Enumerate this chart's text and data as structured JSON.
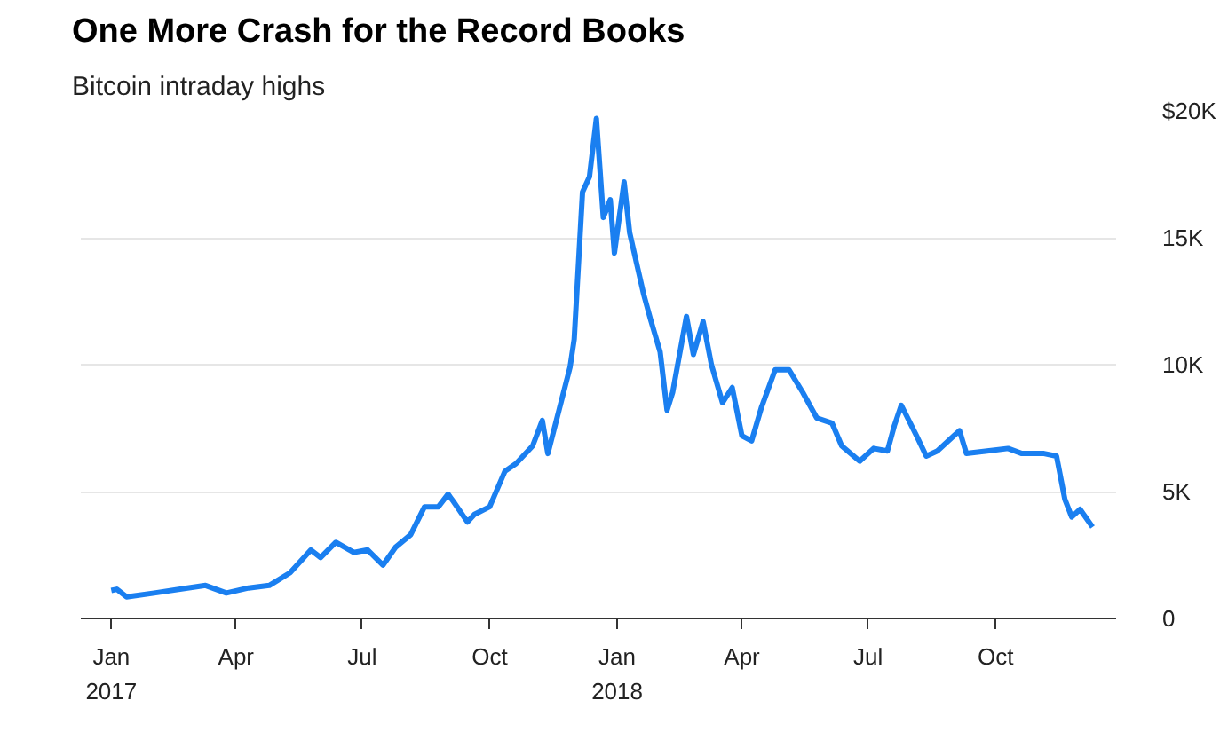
{
  "chart_data": {
    "type": "line",
    "title": "One More Crash for the Record Books",
    "subtitle": "Bitcoin intraday highs",
    "x": [
      "2017-01-01",
      "2017-01-05",
      "2017-01-12",
      "2017-02-01",
      "2017-02-25",
      "2017-03-10",
      "2017-03-25",
      "2017-04-10",
      "2017-04-25",
      "2017-05-10",
      "2017-05-25",
      "2017-06-01",
      "2017-06-12",
      "2017-06-25",
      "2017-07-05",
      "2017-07-16",
      "2017-07-25",
      "2017-08-05",
      "2017-08-15",
      "2017-08-25",
      "2017-09-01",
      "2017-09-05",
      "2017-09-15",
      "2017-09-20",
      "2017-10-01",
      "2017-10-12",
      "2017-10-20",
      "2017-11-01",
      "2017-11-08",
      "2017-11-12",
      "2017-11-20",
      "2017-11-28",
      "2017-12-01",
      "2017-12-07",
      "2017-12-12",
      "2017-12-17",
      "2017-12-22",
      "2017-12-27",
      "2017-12-30",
      "2018-01-06",
      "2018-01-10",
      "2018-01-15",
      "2018-01-20",
      "2018-01-25",
      "2018-02-01",
      "2018-02-06",
      "2018-02-10",
      "2018-02-20",
      "2018-02-25",
      "2018-03-04",
      "2018-03-10",
      "2018-03-18",
      "2018-03-25",
      "2018-04-01",
      "2018-04-08",
      "2018-04-15",
      "2018-04-25",
      "2018-05-05",
      "2018-05-15",
      "2018-05-25",
      "2018-06-05",
      "2018-06-12",
      "2018-06-25",
      "2018-07-05",
      "2018-07-15",
      "2018-07-20",
      "2018-07-25",
      "2018-08-05",
      "2018-08-12",
      "2018-08-20",
      "2018-09-01",
      "2018-09-05",
      "2018-09-10",
      "2018-09-25",
      "2018-10-10",
      "2018-10-20",
      "2018-11-05",
      "2018-11-14",
      "2018-11-20",
      "2018-11-25",
      "2018-12-01",
      "2018-12-10"
    ],
    "series": [
      {
        "color": "#1a7ff0",
        "values": [
          1100,
          1150,
          850,
          1000,
          1200,
          1300,
          1000,
          1200,
          1300,
          1800,
          2700,
          2400,
          3000,
          2600,
          2700,
          2100,
          2800,
          3300,
          4400,
          4400,
          4900,
          4600,
          3800,
          4100,
          4400,
          5800,
          6100,
          6800,
          7800,
          6500,
          8200,
          9900,
          11000,
          16800,
          17400,
          19700,
          15800,
          16500,
          14400,
          17200,
          15200,
          14000,
          12800,
          11800,
          10500,
          8200,
          8900,
          11900,
          10400,
          11700,
          10000,
          8500,
          9100,
          7200,
          7000,
          8300,
          9800,
          9800,
          8900,
          7900,
          7700,
          6800,
          6200,
          6700,
          6600,
          7600,
          8400,
          7200,
          6400,
          6600,
          7200,
          7400,
          6500,
          6600,
          6700,
          6500,
          6500,
          6400,
          4700,
          4000,
          4300,
          3600
        ]
      }
    ],
    "xlim": [
      "2016-12-10",
      "2018-12-27"
    ],
    "ylim": [
      0,
      20000
    ],
    "xticks": [
      {
        "value": "2017-01-01",
        "label": "Jan\n2017"
      },
      {
        "value": "2017-04-01",
        "label": "Apr"
      },
      {
        "value": "2017-07-01",
        "label": "Jul"
      },
      {
        "value": "2017-10-01",
        "label": "Oct"
      },
      {
        "value": "2018-01-01",
        "label": "Jan\n2018"
      },
      {
        "value": "2018-04-01",
        "label": "Apr"
      },
      {
        "value": "2018-07-01",
        "label": "Jul"
      },
      {
        "value": "2018-10-01",
        "label": "Oct"
      }
    ],
    "yticks": [
      0,
      {
        "value": 5000,
        "label": "5K"
      },
      {
        "value": 10000,
        "label": "10K"
      },
      {
        "value": 15000,
        "label": "15K"
      },
      {
        "value": 20000,
        "label": "$20K"
      }
    ],
    "grid": "y"
  }
}
